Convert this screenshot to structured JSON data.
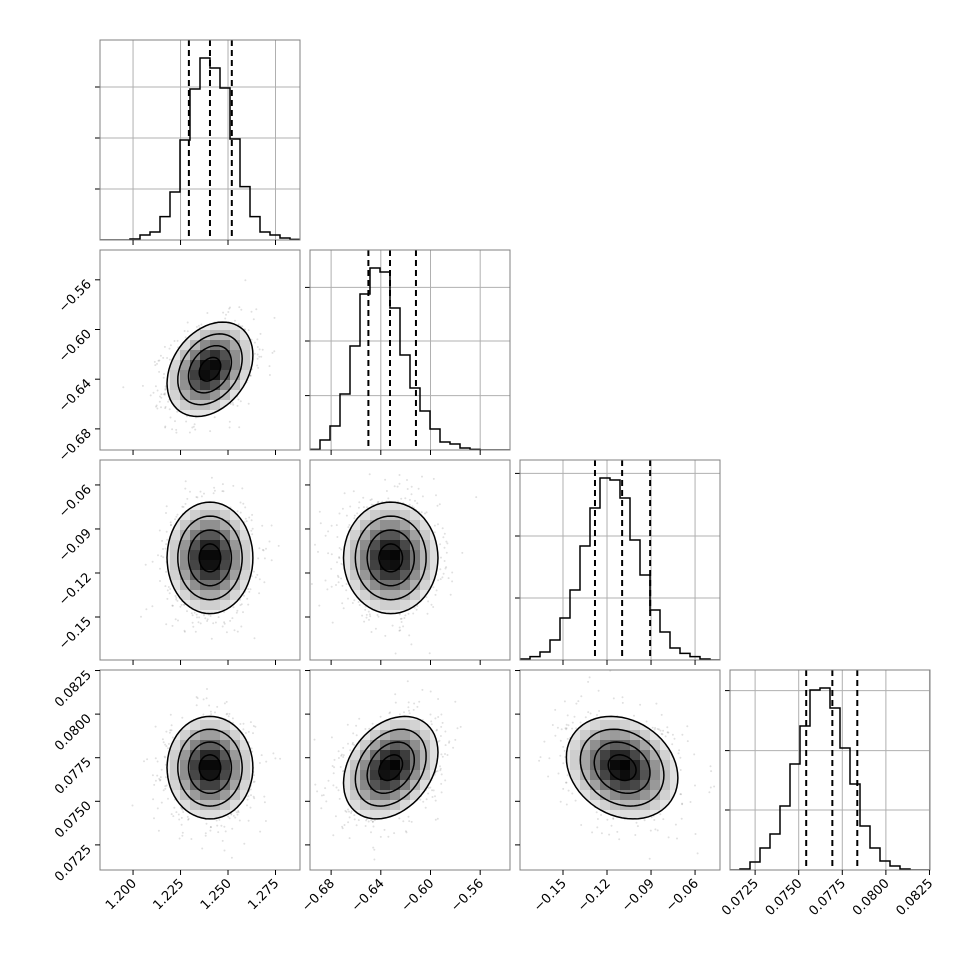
{
  "chart_data": {
    "type": "corner",
    "parameters": [
      {
        "xlim": [
          1.1826,
          1.2879
        ],
        "ticks": [
          1.2,
          1.225,
          1.25,
          1.275
        ],
        "tick_labels": [
          "1.200",
          "1.225",
          "1.250",
          "1.275"
        ],
        "quantiles": [
          1.2294,
          1.2405,
          1.252
        ],
        "mean": 1.2405,
        "std": 0.0113,
        "hist_heights": [
          0,
          0,
          0,
          0.5,
          2.5,
          4,
          11.7,
          24,
          50,
          75.5,
          91,
          86,
          76,
          50.5,
          26.7,
          11.7,
          4,
          2.5,
          1,
          0.3
        ],
        "hist_yticks": [
          25.5,
          51,
          76.5
        ]
      },
      {
        "xlim": [
          -0.697,
          -0.536
        ],
        "ticks": [
          -0.68,
          -0.64,
          -0.6,
          -0.56
        ],
        "tick_labels": [
          "−0.68",
          "−0.64",
          "−0.60",
          "−0.56"
        ],
        "quantiles": [
          -0.65,
          -0.6326,
          -0.6117
        ],
        "mean": -0.632,
        "std": 0.019,
        "hist_heights": [
          0.3,
          5,
          12,
          28,
          52,
          78,
          91,
          89,
          71,
          47.5,
          31,
          19.5,
          10.5,
          4,
          3,
          1,
          0.3,
          0,
          0,
          0
        ],
        "hist_yticks": [
          27.2,
          54.5,
          81.3
        ]
      },
      {
        "xlim": [
          -0.1793,
          -0.043
        ],
        "ticks": [
          -0.15,
          -0.12,
          -0.09,
          -0.06
        ],
        "tick_labels": [
          "−0.15",
          "−0.12",
          "−0.09",
          "−0.06"
        ],
        "quantiles": [
          -0.1282,
          -0.1097,
          -0.0906
        ],
        "mean": -0.1097,
        "std": 0.019,
        "hist_heights": [
          0.5,
          1.7,
          4,
          10,
          21,
          35,
          57,
          76,
          91,
          90,
          81,
          60,
          42.5,
          25,
          14,
          6,
          3.3,
          1.7,
          0.5,
          0
        ],
        "hist_yticks": [
          31,
          62,
          93.3
        ]
      },
      {
        "xlim": [
          0.07106,
          0.08253
        ],
        "ticks": [
          0.0725,
          0.075,
          0.0775,
          0.08,
          0.0825
        ],
        "tick_labels": [
          "0.0725",
          "0.0750",
          "0.0775",
          "0.0800",
          "0.0825"
        ],
        "quantiles": [
          0.07543,
          0.07693,
          0.07836
        ],
        "mean": 0.07693,
        "std": 0.00147,
        "hist_heights": [
          0,
          0.5,
          4,
          11,
          18,
          32,
          53,
          72,
          90,
          91,
          81,
          61,
          43,
          22,
          11,
          4.5,
          2,
          0.5,
          0,
          0
        ],
        "hist_yticks": [
          30,
          59.7,
          89.7
        ]
      }
    ],
    "correlations": [
      [
        1,
        0.3,
        0,
        0
      ],
      [
        0.3,
        1,
        0,
        0.3
      ],
      [
        0,
        0,
        1,
        -0.2
      ],
      [
        0,
        0.3,
        -0.2,
        1
      ]
    ],
    "contour_sigma_levels": [
      0.5,
      1,
      1.5,
      2
    ],
    "grid_on_histograms": true,
    "colors": {
      "contour": "#000000",
      "points": "#000000",
      "grid": "#b0b0b0",
      "frame": "#808080"
    }
  }
}
